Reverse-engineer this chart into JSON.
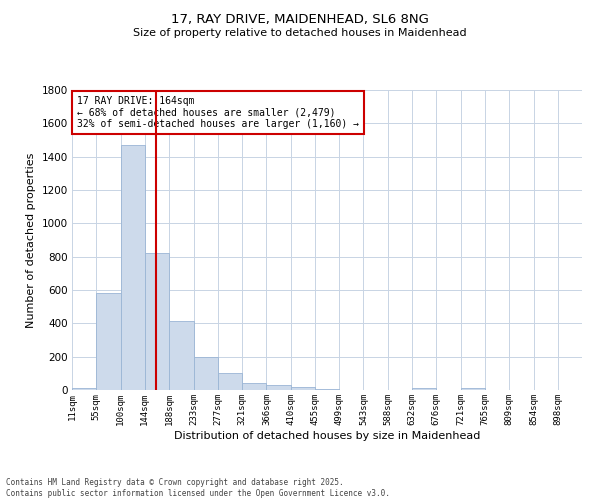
{
  "title_line1": "17, RAY DRIVE, MAIDENHEAD, SL6 8NG",
  "title_line2": "Size of property relative to detached houses in Maidenhead",
  "xlabel": "Distribution of detached houses by size in Maidenhead",
  "ylabel": "Number of detached properties",
  "footnote_line1": "Contains HM Land Registry data © Crown copyright and database right 2025.",
  "footnote_line2": "Contains public sector information licensed under the Open Government Licence v3.0.",
  "annotation_line1": "17 RAY DRIVE: 164sqm",
  "annotation_line2": "← 68% of detached houses are smaller (2,479)",
  "annotation_line3": "32% of semi-detached houses are larger (1,160) →",
  "vline_x": 164,
  "bar_color": "#cddaeb",
  "bar_edge_color": "#9ab5d5",
  "vline_color": "#cc0000",
  "annotation_box_color": "#cc0000",
  "background_color": "#ffffff",
  "grid_color": "#c8d4e4",
  "categories": [
    "11sqm",
    "55sqm",
    "100sqm",
    "144sqm",
    "188sqm",
    "233sqm",
    "277sqm",
    "321sqm",
    "366sqm",
    "410sqm",
    "455sqm",
    "499sqm",
    "543sqm",
    "588sqm",
    "632sqm",
    "676sqm",
    "721sqm",
    "765sqm",
    "809sqm",
    "854sqm",
    "898sqm"
  ],
  "bin_edges": [
    11,
    55,
    100,
    144,
    188,
    233,
    277,
    321,
    366,
    410,
    455,
    499,
    543,
    588,
    632,
    676,
    721,
    765,
    809,
    854,
    898,
    942
  ],
  "values": [
    15,
    580,
    1470,
    825,
    415,
    200,
    103,
    40,
    32,
    20,
    5,
    0,
    0,
    0,
    10,
    0,
    12,
    0,
    0,
    0,
    0
  ],
  "ylim": [
    0,
    1800
  ],
  "yticks": [
    0,
    200,
    400,
    600,
    800,
    1000,
    1200,
    1400,
    1600,
    1800
  ]
}
